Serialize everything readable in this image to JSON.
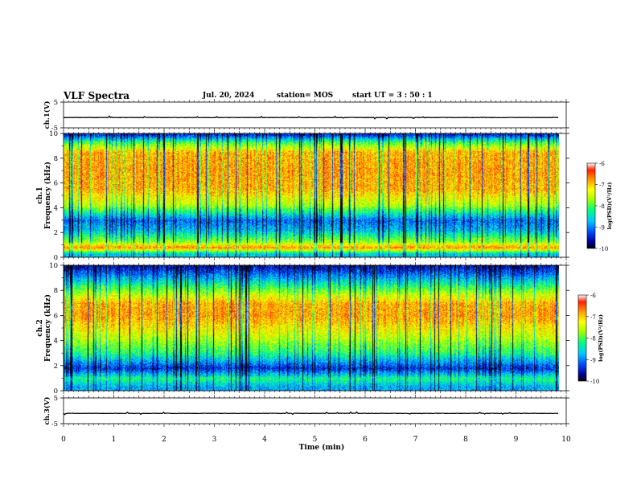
{
  "header": {
    "title": "VLF Spectra",
    "date": "Jul. 20, 2024",
    "station": "station= MOS",
    "start": "start UT = 3 : 50 : 1"
  },
  "colors": {
    "waveform_line": "#000000",
    "colorscale": [
      "#000000",
      "#0000a0",
      "#0050ff",
      "#00c8ff",
      "#00ff80",
      "#a0ff00",
      "#ffff00",
      "#ffa000",
      "#ff2000",
      "#ffffff"
    ]
  },
  "chart_data": [
    {
      "type": "line",
      "panel": "ch1-waveform",
      "ylabel": "ch.1(V)",
      "ylim": [
        -5,
        5
      ],
      "yticks": [
        "5",
        "-5"
      ],
      "xlim": [
        0,
        10
      ],
      "series": [
        {
          "values_constant": -1
        }
      ]
    },
    {
      "type": "heatmap",
      "panel": "ch1-spectrogram",
      "ylabel": [
        "ch.1",
        "Frequency (kHz)"
      ],
      "ylim": [
        0,
        10
      ],
      "yticks": [
        "0",
        "2",
        "4",
        "6",
        "8",
        "10"
      ],
      "xlim": [
        0,
        10
      ],
      "x_data_end": 9.85,
      "colorbar": {
        "label": "log(PSD)(V²/Hz)",
        "range": [
          -10,
          -6
        ],
        "ticks": [
          "-6",
          "-7",
          "-8",
          "-9",
          "-10"
        ]
      },
      "profile_log_psd": [
        {
          "f": 0.3,
          "v": -8.6
        },
        {
          "f": 0.8,
          "v": -6.7
        },
        {
          "f": 1.3,
          "v": -7.7
        },
        {
          "f": 2.2,
          "v": -8.7
        },
        {
          "f": 3.0,
          "v": -9.1
        },
        {
          "f": 4.2,
          "v": -7.6
        },
        {
          "f": 5.5,
          "v": -6.9
        },
        {
          "f": 7.0,
          "v": -6.8
        },
        {
          "f": 8.5,
          "v": -6.9
        },
        {
          "f": 9.3,
          "v": -8.0
        },
        {
          "f": 9.9,
          "v": -9.4
        }
      ]
    },
    {
      "type": "heatmap",
      "panel": "ch2-spectrogram",
      "ylabel": [
        "ch.2",
        "Frequency (kHz)"
      ],
      "ylim": [
        0,
        10
      ],
      "yticks": [
        "0",
        "2",
        "4",
        "6",
        "8",
        "10"
      ],
      "xlim": [
        0,
        10
      ],
      "x_data_end": 9.85,
      "colorbar": {
        "label": "log(PSD)(V²/Hz)",
        "range": [
          -10,
          -6
        ],
        "ticks": [
          "-6",
          "-7",
          "-8",
          "-9",
          "-10"
        ]
      },
      "profile_log_psd": [
        {
          "f": 0.3,
          "v": -8.8
        },
        {
          "f": 1.0,
          "v": -8.2
        },
        {
          "f": 1.8,
          "v": -9.4
        },
        {
          "f": 3.0,
          "v": -8.2
        },
        {
          "f": 4.5,
          "v": -7.4
        },
        {
          "f": 6.0,
          "v": -6.8
        },
        {
          "f": 7.0,
          "v": -6.9
        },
        {
          "f": 8.0,
          "v": -7.8
        },
        {
          "f": 9.0,
          "v": -8.8
        },
        {
          "f": 9.9,
          "v": -9.6
        }
      ]
    },
    {
      "type": "line",
      "panel": "ch3-waveform",
      "ylabel": "ch.3(V)",
      "ylim": [
        -5,
        5
      ],
      "yticks": [
        "5",
        "-5"
      ],
      "xlim": [
        0,
        10
      ],
      "series": [
        {
          "values_constant": -1
        }
      ]
    }
  ],
  "xaxis": {
    "label": "Time (min)",
    "range": [
      0,
      10
    ],
    "ticks": [
      "0",
      "1",
      "2",
      "3",
      "4",
      "5",
      "6",
      "7",
      "8",
      "9",
      "10"
    ]
  }
}
